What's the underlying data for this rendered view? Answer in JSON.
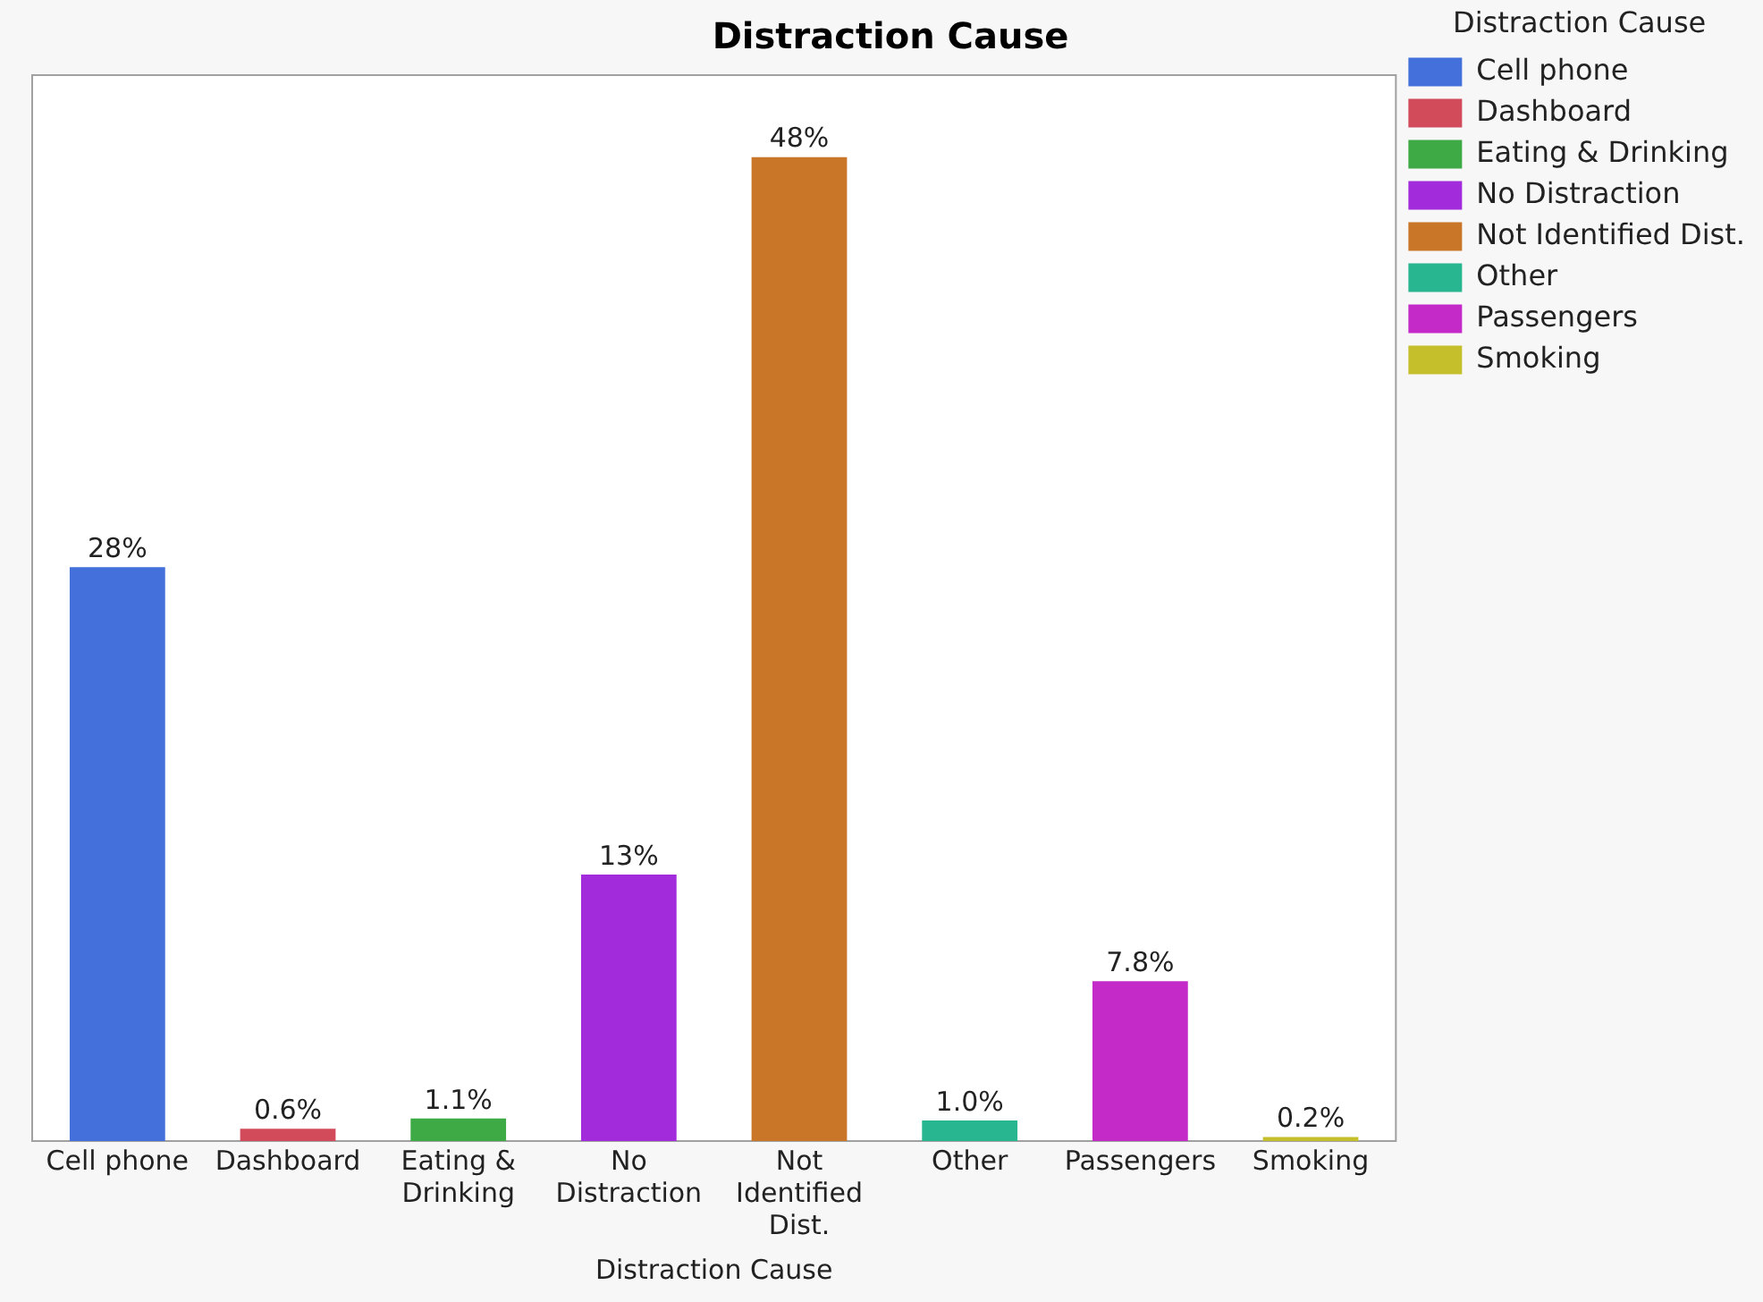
{
  "chart_data": {
    "type": "bar",
    "title": "Distraction Cause",
    "xlabel": "Distraction Cause",
    "legend_title": "Distraction Cause",
    "categories": [
      "Cell phone",
      "Dashboard",
      "Eating & Drinking",
      "No Distraction",
      "Not Identified Dist.",
      "Other",
      "Passengers",
      "Smoking"
    ],
    "series": [
      {
        "name": "Cell phone",
        "color": "#4370db",
        "values": [
          28,
          null,
          null,
          null,
          null,
          null,
          null,
          null
        ],
        "value_labels": [
          "28%",
          null,
          null,
          null,
          null,
          null,
          null,
          null
        ]
      },
      {
        "name": "Dashboard",
        "color": "#d24b5a",
        "values": [
          null,
          0.6,
          null,
          null,
          null,
          null,
          null,
          null
        ],
        "value_labels": [
          null,
          "0.6%",
          null,
          null,
          null,
          null,
          null,
          null
        ]
      },
      {
        "name": "Eating & Drinking",
        "color": "#3eaa45",
        "values": [
          null,
          null,
          1.1,
          null,
          null,
          null,
          null,
          null
        ],
        "value_labels": [
          null,
          null,
          "1.1%",
          null,
          null,
          null,
          null,
          null
        ]
      },
      {
        "name": "No Distraction",
        "color": "#a22cdb",
        "values": [
          null,
          null,
          null,
          13,
          null,
          null,
          null,
          null
        ],
        "value_labels": [
          null,
          null,
          null,
          "13%",
          null,
          null,
          null,
          null
        ]
      },
      {
        "name": "Not Identified Dist.",
        "color": "#c97629",
        "values": [
          null,
          null,
          null,
          null,
          48,
          null,
          null,
          null
        ],
        "value_labels": [
          null,
          null,
          null,
          null,
          "48%",
          null,
          null,
          null
        ]
      },
      {
        "name": "Other",
        "color": "#27b68f",
        "values": [
          null,
          null,
          null,
          null,
          null,
          1.0,
          null,
          null
        ],
        "value_labels": [
          null,
          null,
          null,
          null,
          null,
          "1.0%",
          null,
          null
        ]
      },
      {
        "name": "Passengers",
        "color": "#c42ac8",
        "values": [
          null,
          null,
          null,
          null,
          null,
          null,
          7.8,
          null
        ],
        "value_labels": [
          null,
          null,
          null,
          null,
          null,
          null,
          "7.8%",
          null
        ]
      },
      {
        "name": "Smoking",
        "color": "#c5bf2b",
        "values": [
          null,
          null,
          null,
          null,
          null,
          null,
          null,
          0.2
        ],
        "value_labels": [
          null,
          null,
          null,
          null,
          null,
          null,
          null,
          "0.2%"
        ]
      }
    ],
    "ylim": [
      0,
      52
    ],
    "tick_labels": "x",
    "legend": "right",
    "grid": false
  }
}
